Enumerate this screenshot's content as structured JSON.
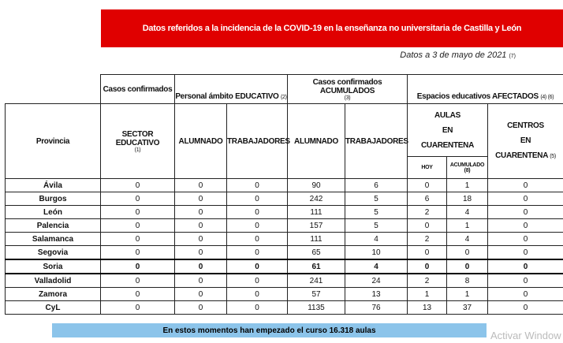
{
  "banner_title": "Datos referidos a la incidencia de la COVID-19 en la enseñanza no universitaria de Castilla y León",
  "date_note": "Datos a 3 de mayo de 2021",
  "date_ref": "(7)",
  "headers": {
    "casos_confirmados": "Casos confirmados",
    "personal": "Personal ámbito EDUCATIVO",
    "personal_ref": "(2)",
    "acumulados": "Casos confirmados ACUMULADOS",
    "acumulados_ref": "(3)",
    "espacios": "Espacios educativos AFECTADOS",
    "espacios_ref": "(4) (6)",
    "provincia": "Provincia",
    "sector": "SECTOR EDUCATIVO",
    "sector_ref": "(1)",
    "alumnado": "ALUMNADO",
    "trabajadores": "TRABAJADORES",
    "alumnado2": "ALUMNADO",
    "trabajadores2": "TRABAJADORES",
    "aulas_1": "AULAS",
    "aulas_2": "EN",
    "aulas_3": "CUARENTENA",
    "centros_1": "CENTROS",
    "centros_2": "EN",
    "centros_3": "CUARENTENA",
    "centros_ref": "(5)",
    "hoy": "HOY",
    "acumulado": "ACUMULADO",
    "acumulado_ref": "(8)"
  },
  "rows": [
    [
      "Ávila",
      "0",
      "0",
      "0",
      "90",
      "6",
      "0",
      "1",
      "0"
    ],
    [
      "Burgos",
      "0",
      "0",
      "0",
      "242",
      "5",
      "6",
      "18",
      "0"
    ],
    [
      "León",
      "0",
      "0",
      "0",
      "111",
      "5",
      "2",
      "4",
      "0"
    ],
    [
      "Palencia",
      "0",
      "0",
      "0",
      "157",
      "5",
      "0",
      "1",
      "0"
    ],
    [
      "Salamanca",
      "0",
      "0",
      "0",
      "111",
      "4",
      "2",
      "4",
      "0"
    ],
    [
      "Segovia",
      "0",
      "0",
      "0",
      "65",
      "10",
      "0",
      "0",
      "0"
    ],
    [
      "Soria",
      "0",
      "0",
      "0",
      "61",
      "4",
      "0",
      "0",
      "0"
    ],
    [
      "Valladolid",
      "0",
      "0",
      "0",
      "241",
      "24",
      "2",
      "8",
      "0"
    ],
    [
      "Zamora",
      "0",
      "0",
      "0",
      "57",
      "13",
      "1",
      "1",
      "0"
    ],
    [
      "CyL",
      "0",
      "0",
      "0",
      "1135",
      "76",
      "13",
      "37",
      "0"
    ]
  ],
  "highlighted_row": "Soria",
  "footer": "En estos momentos han empezado el curso 16.318 aulas",
  "watermark": "Activar Window",
  "colors": {
    "banner": "#e00000",
    "footer": "#8cc4ea"
  }
}
